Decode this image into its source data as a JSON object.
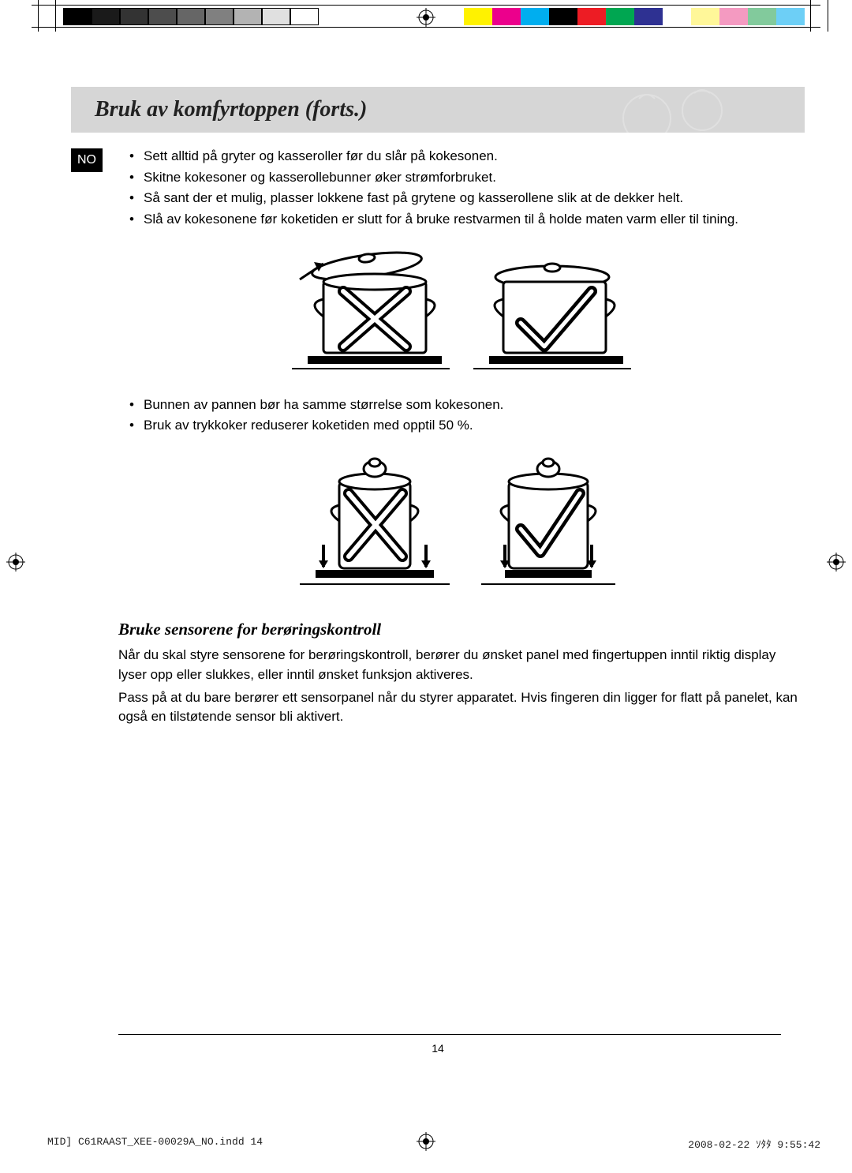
{
  "printer_bars": {
    "grays": [
      "#000000",
      "#1a1a1a",
      "#333333",
      "#4d4d4d",
      "#666666",
      "#808080",
      "#b3b3b3",
      "#e0e0e0",
      "#ffffff"
    ],
    "colors": [
      "#fff200",
      "#ec008c",
      "#00aeef",
      "#000000",
      "#ed1c24",
      "#00a651",
      "#2e3192",
      "#ffffff",
      "#fff799",
      "#f49ac1",
      "#82ca9c",
      "#6dcff6"
    ]
  },
  "title": "Bruk av komfyrtoppen (forts.)",
  "lang_badge": "NO",
  "bullets1": [
    "Sett alltid på gryter og kasseroller før du slår på kokesonen.",
    "Skitne kokesoner og kasserollebunner øker strømforbruket.",
    "Så sant der et mulig, plasser lokkene fast på grytene og kasserollene slik at de dekker helt.",
    "Slå av kokesonene før koketiden er slutt for å bruke restvarmen til å holde maten varm eller til tining."
  ],
  "bullets2": [
    "Bunnen av pannen bør ha samme størrelse som kokesonen.",
    "Bruk av trykkoker reduserer koketiden med opptil 50 %."
  ],
  "subheading": "Bruke sensorene for berøringskontroll",
  "para1": "Når du skal styre sensorene for berøringskontroll, berører du ønsket panel med fingertuppen inntil riktig display lyser opp eller slukkes, eller inntil ønsket funksjon aktiveres.",
  "para2": "Pass på at du bare berører ett sensorpanel når du styrer apparatet.  Hvis fingeren din ligger for flatt på panelet, kan også en tilstøtende sensor bli aktivert.",
  "page_number": "14",
  "footer": {
    "file": "MID] C61RAAST_XEE-00029A_NO.indd   14",
    "date": "2008-02-22   ｿﾀﾀ   9:55:42"
  },
  "figure_style": {
    "stroke": "#000000",
    "stroke_width": 3,
    "x_color": "#000000",
    "check_color": "#000000",
    "pot_fill": "#ffffff"
  }
}
